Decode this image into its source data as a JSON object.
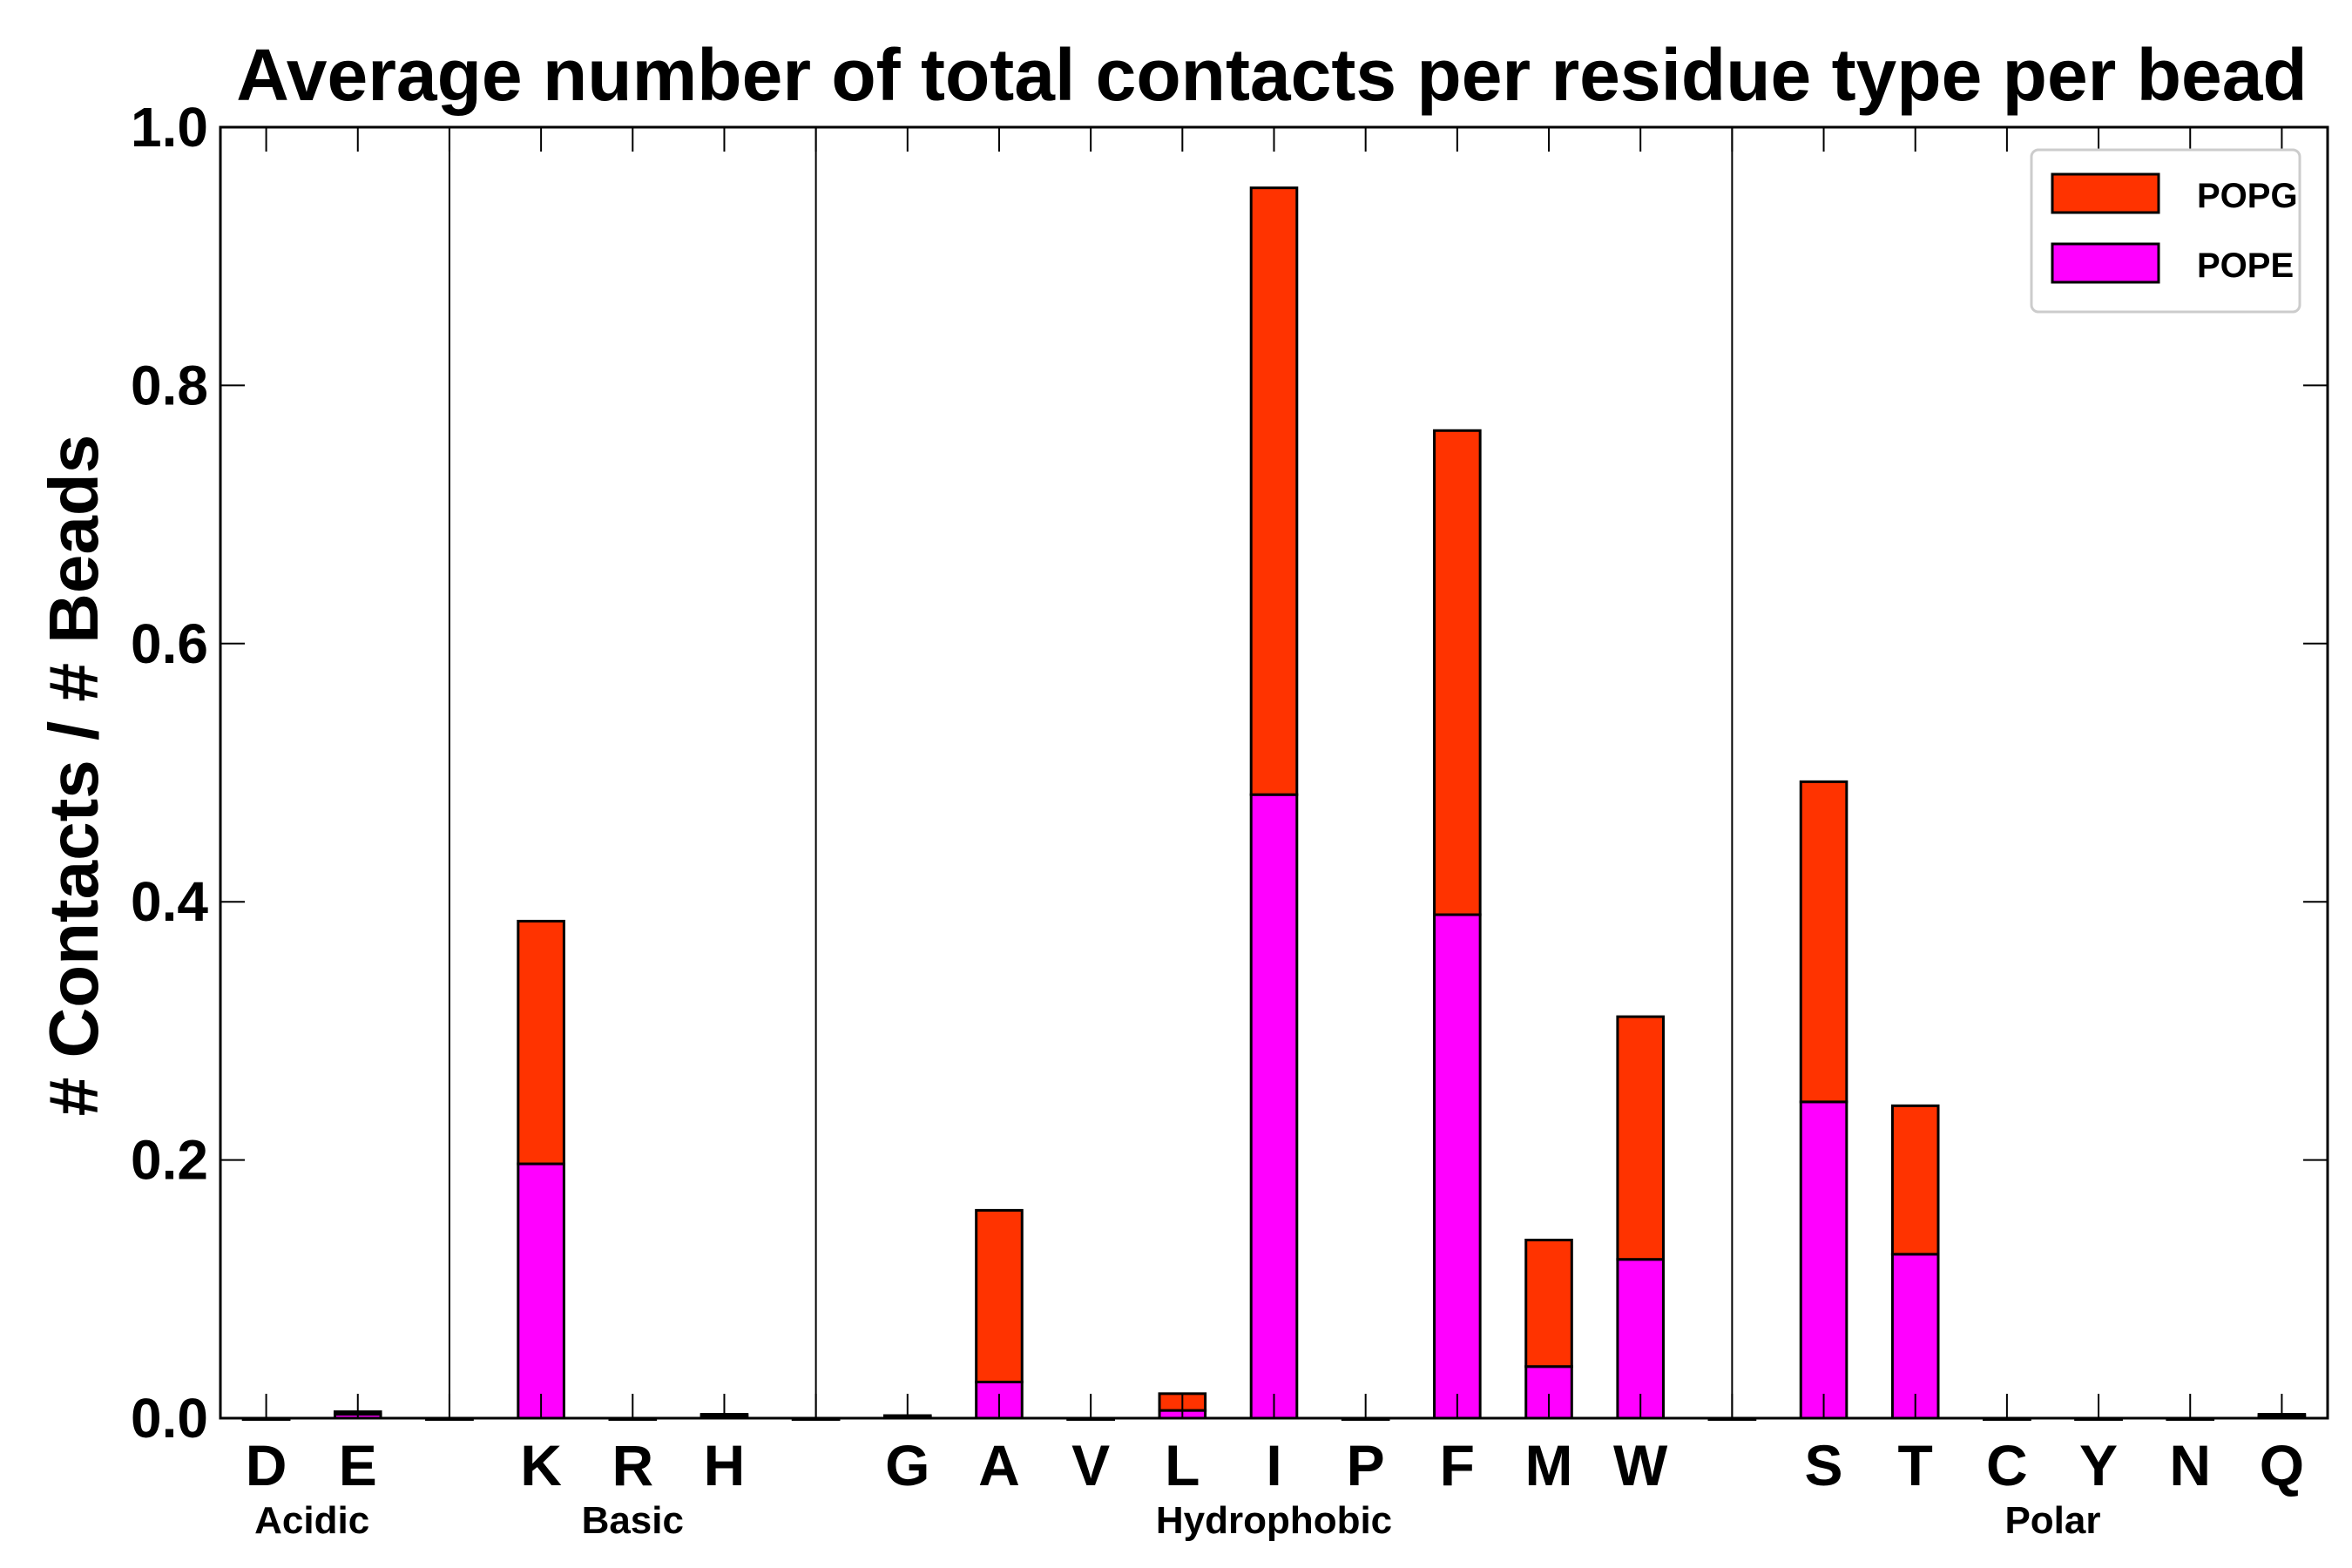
{
  "chart_data": {
    "type": "bar",
    "stacked": true,
    "title": "Average number of total contacts per residue type per bead",
    "xlabel": "",
    "ylabel": "# Contacts / # Beads",
    "ylim": [
      0,
      1.0
    ],
    "yticks": [
      0.0,
      0.2,
      0.4,
      0.6,
      0.8,
      1.0
    ],
    "ytick_labels": [
      "0.0",
      "0.2",
      "0.4",
      "0.6",
      "0.8",
      "1.0"
    ],
    "categories": [
      "D",
      "E",
      "",
      "K",
      "R",
      "H",
      "",
      "G",
      "A",
      "V",
      "L",
      "I",
      "P",
      "F",
      "M",
      "W",
      "",
      "S",
      "T",
      "C",
      "Y",
      "N",
      "Q"
    ],
    "series": [
      {
        "name": "POPE",
        "color": "#ff00ff",
        "values": [
          0.0,
          0.003,
          0.0,
          0.197,
          0.0,
          0.002,
          0.0,
          0.001,
          0.028,
          0.0,
          0.006,
          0.483,
          0.0,
          0.39,
          0.04,
          0.123,
          0.0,
          0.245,
          0.127,
          0.0,
          0.0,
          0.0,
          0.002
        ]
      },
      {
        "name": "POPG",
        "color": "#ff3300",
        "values": [
          0.0,
          0.002,
          0.0,
          0.188,
          0.0,
          0.001,
          0.0,
          0.001,
          0.133,
          0.0,
          0.013,
          0.47,
          0.0,
          0.375,
          0.098,
          0.188,
          0.0,
          0.248,
          0.115,
          0.0,
          0.0,
          0.0,
          0.001
        ]
      }
    ],
    "legend": {
      "position": "top-right",
      "entries": [
        "POPG",
        "POPE"
      ]
    },
    "groups": [
      {
        "label": "Acidic",
        "center_index": 0.5
      },
      {
        "label": "Basic",
        "center_index": 4
      },
      {
        "label": "Hydrophobic",
        "center_index": 11
      },
      {
        "label": "Polar",
        "center_index": 19.5
      }
    ],
    "separators_after_index": [
      2,
      6,
      16
    ]
  }
}
